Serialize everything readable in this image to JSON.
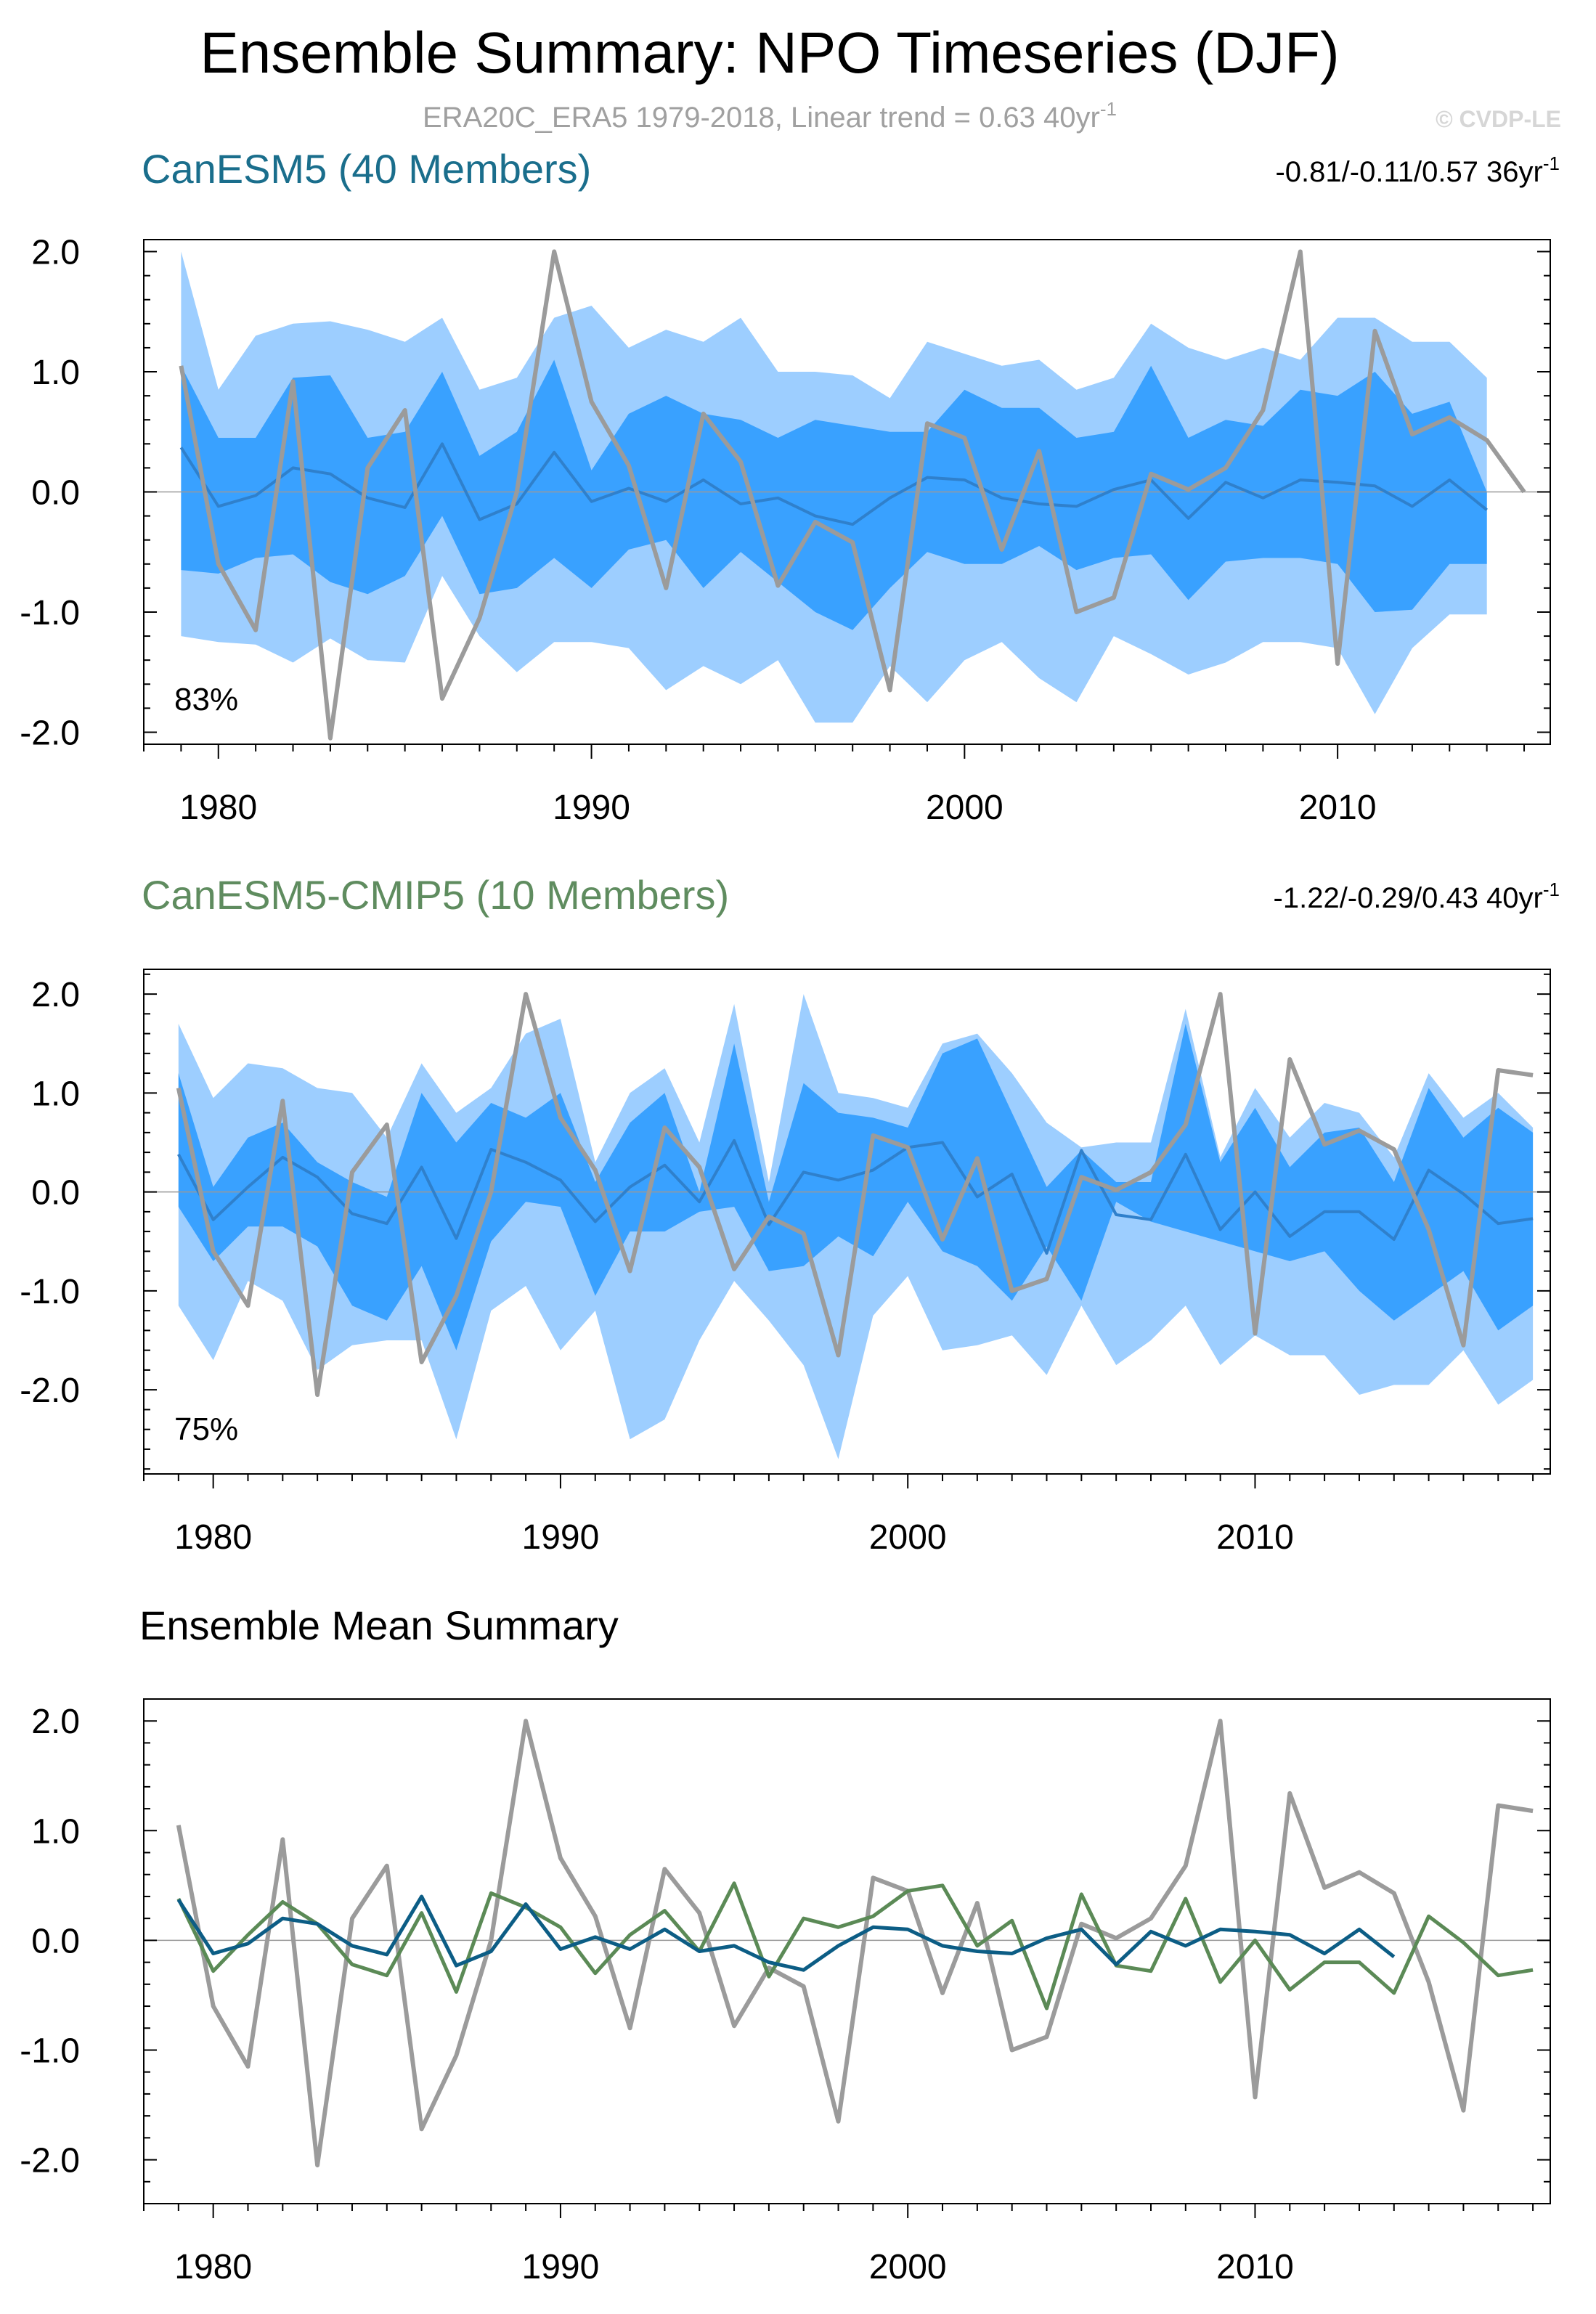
{
  "title": "Ensemble Summary: NPO Timeseries (DJF)",
  "subtitle_main": "ERA20C_ERA5 1979-2018, Linear trend = 0.63 40yr",
  "subtitle_sup": "-1",
  "credit": "© CVDP-LE",
  "colors": {
    "band_outer": "#9dceff",
    "band_inner": "#39a1ff",
    "ens_mean": "#2f80cc",
    "obs": "#9b9b9b",
    "canesm5_title": "#1a6e8c",
    "cmip5_title": "#5f8c5f",
    "mean_canesm5": "#0c5d85",
    "mean_cmip5": "#5b8a56",
    "zero_line": "#999999"
  },
  "chart_data": [
    {
      "type": "area",
      "name": "canesm5-panel",
      "title": "CanESM5 (40 Members)",
      "trend_text": "-0.81/-0.11/0.57 36yr",
      "trend_sup": "-1",
      "percent_label": "83%",
      "xlim": [
        1978,
        2015.7
      ],
      "ylim": [
        -2.1,
        2.1
      ],
      "xticks": [
        1980,
        1990,
        2000,
        2010
      ],
      "xtick_labels": [
        "1980",
        "1990",
        "2000",
        "2010"
      ],
      "yticks": [
        2.0,
        1.0,
        0.0,
        -1.0,
        -2.0
      ],
      "ytick_labels": [
        "2.0",
        "1.0",
        "0.0",
        "-1.0",
        "-2.0"
      ],
      "x": [
        1979,
        1980,
        1981,
        1982,
        1983,
        1984,
        1985,
        1986,
        1987,
        1988,
        1989,
        1990,
        1991,
        1992,
        1993,
        1994,
        1995,
        1996,
        1997,
        1998,
        1999,
        2000,
        2001,
        2002,
        2003,
        2004,
        2005,
        2006,
        2007,
        2008,
        2009,
        2010,
        2011,
        2012,
        2013,
        2014
      ],
      "max": [
        2.0,
        0.85,
        1.3,
        1.4,
        1.42,
        1.35,
        1.25,
        1.45,
        0.85,
        0.95,
        1.45,
        1.55,
        1.2,
        1.35,
        1.25,
        1.45,
        1.0,
        1.0,
        0.97,
        0.78,
        1.25,
        1.15,
        1.05,
        1.1,
        0.85,
        0.95,
        1.4,
        1.2,
        1.1,
        1.2,
        1.1,
        1.45,
        1.45,
        1.25,
        1.25,
        0.95
      ],
      "p90": [
        1.05,
        0.45,
        0.45,
        0.95,
        0.97,
        0.45,
        0.5,
        1.0,
        0.3,
        0.5,
        1.1,
        0.18,
        0.65,
        0.8,
        0.65,
        0.6,
        0.45,
        0.6,
        0.55,
        0.5,
        0.5,
        0.85,
        0.7,
        0.7,
        0.45,
        0.5,
        1.05,
        0.45,
        0.6,
        0.55,
        0.85,
        0.8,
        1.0,
        0.65,
        0.75,
        0.0
      ],
      "p10": [
        -0.65,
        -0.68,
        -0.55,
        -0.52,
        -0.75,
        -0.85,
        -0.7,
        -0.2,
        -0.85,
        -0.8,
        -0.55,
        -0.8,
        -0.48,
        -0.4,
        -0.8,
        -0.5,
        -0.75,
        -1.0,
        -1.15,
        -0.8,
        -0.5,
        -0.6,
        -0.6,
        -0.45,
        -0.65,
        -0.55,
        -0.52,
        -0.9,
        -0.58,
        -0.55,
        -0.55,
        -0.6,
        -1.0,
        -0.98,
        -0.6,
        -0.6
      ],
      "min": [
        -1.2,
        -1.25,
        -1.27,
        -1.42,
        -1.22,
        -1.4,
        -1.42,
        -0.7,
        -1.2,
        -1.5,
        -1.25,
        -1.25,
        -1.3,
        -1.65,
        -1.45,
        -1.6,
        -1.4,
        -1.92,
        -1.92,
        -1.45,
        -1.75,
        -1.4,
        -1.25,
        -1.55,
        -1.75,
        -1.2,
        -1.35,
        -1.52,
        -1.42,
        -1.25,
        -1.25,
        -1.3,
        -1.85,
        -1.3,
        -1.02,
        -1.02
      ],
      "ensemble_mean": [
        0.37,
        -0.12,
        -0.03,
        0.2,
        0.15,
        -0.05,
        -0.13,
        0.4,
        -0.23,
        -0.1,
        0.33,
        -0.08,
        0.03,
        -0.08,
        0.1,
        -0.1,
        -0.05,
        -0.2,
        -0.27,
        -0.05,
        0.12,
        0.1,
        -0.05,
        -0.1,
        -0.12,
        0.02,
        0.1,
        -0.22,
        0.08,
        -0.05,
        0.1,
        0.08,
        0.05,
        -0.12,
        0.1,
        -0.15
      ],
      "obs_x": [
        1979,
        1980,
        1981,
        1982,
        1983,
        1984,
        1985,
        1986,
        1987,
        1988,
        1989,
        1990,
        1991,
        1992,
        1993,
        1994,
        1995,
        1996,
        1997,
        1998,
        1999,
        2000,
        2001,
        2002,
        2003,
        2004,
        2005,
        2006,
        2007,
        2008,
        2009,
        2010,
        2011,
        2012,
        2013,
        2014,
        2015
      ],
      "obs": [
        1.05,
        -0.6,
        -1.15,
        0.92,
        -2.05,
        0.2,
        0.68,
        -1.72,
        -1.05,
        0.0,
        2.0,
        0.75,
        0.22,
        -0.8,
        0.65,
        0.25,
        -0.78,
        -0.25,
        -0.42,
        -1.65,
        0.57,
        0.45,
        -0.48,
        0.34,
        -1.0,
        -0.88,
        0.15,
        0.02,
        0.2,
        0.68,
        2.0,
        -1.43,
        1.34,
        0.48,
        0.62,
        0.43,
        0.0
      ]
    },
    {
      "type": "area",
      "name": "cmip5-panel",
      "title": "CanESM5-CMIP5 (10 Members)",
      "trend_text": "-1.22/-0.29/0.43 40yr",
      "trend_sup": "-1",
      "percent_label": "75%",
      "xlim": [
        1978,
        2018.5
      ],
      "ylim": [
        -2.85,
        2.25
      ],
      "xticks": [
        1980,
        1990,
        2000,
        2010
      ],
      "xtick_labels": [
        "1980",
        "1990",
        "2000",
        "2010"
      ],
      "yticks": [
        2.0,
        1.0,
        0.0,
        -1.0,
        -2.0
      ],
      "ytick_labels": [
        "2.0",
        "1.0",
        "0.0",
        "-1.0",
        "-2.0"
      ],
      "x": [
        1979,
        1980,
        1981,
        1982,
        1983,
        1984,
        1985,
        1986,
        1987,
        1988,
        1989,
        1990,
        1991,
        1992,
        1993,
        1994,
        1995,
        1996,
        1997,
        1998,
        1999,
        2000,
        2001,
        2002,
        2003,
        2004,
        2005,
        2006,
        2007,
        2008,
        2009,
        2010,
        2011,
        2012,
        2013,
        2014,
        2015,
        2016,
        2017,
        2018
      ],
      "max": [
        1.7,
        0.95,
        1.3,
        1.25,
        1.05,
        1.0,
        0.55,
        1.3,
        0.8,
        1.05,
        1.6,
        1.75,
        0.3,
        1.0,
        1.25,
        0.5,
        1.9,
        0.1,
        2.0,
        1.0,
        0.95,
        0.85,
        1.5,
        1.6,
        1.2,
        0.7,
        0.45,
        0.5,
        0.5,
        1.85,
        0.35,
        1.05,
        0.55,
        0.9,
        0.8,
        0.35,
        1.2,
        0.75,
        1.0,
        0.65
      ],
      "p90": [
        1.2,
        0.05,
        0.55,
        0.7,
        0.3,
        0.1,
        -0.05,
        1.0,
        0.5,
        0.9,
        0.75,
        1.0,
        0.1,
        0.7,
        1.0,
        0.0,
        1.5,
        -0.1,
        1.1,
        0.8,
        0.75,
        0.65,
        1.4,
        1.55,
        0.8,
        0.05,
        0.42,
        0.1,
        0.1,
        1.7,
        0.3,
        0.85,
        0.25,
        0.6,
        0.65,
        0.1,
        1.05,
        0.55,
        0.85,
        0.6
      ],
      "p10": [
        -0.15,
        -0.7,
        -0.35,
        -0.35,
        -0.55,
        -1.15,
        -1.3,
        -0.75,
        -1.6,
        -0.5,
        -0.1,
        -0.15,
        -1.05,
        -0.4,
        -0.4,
        -0.2,
        -0.15,
        -0.8,
        -0.75,
        -0.45,
        -0.65,
        -0.1,
        -0.6,
        -0.75,
        -1.1,
        -0.55,
        -1.1,
        -0.1,
        -0.3,
        -0.4,
        -0.5,
        -0.6,
        -0.7,
        -0.6,
        -1.0,
        -1.3,
        -1.05,
        -0.8,
        -1.4,
        -1.15
      ],
      "min": [
        -1.15,
        -1.7,
        -0.9,
        -1.1,
        -1.8,
        -1.55,
        -1.5,
        -1.5,
        -2.5,
        -1.2,
        -0.95,
        -1.6,
        -1.2,
        -2.5,
        -2.3,
        -1.5,
        -0.9,
        -1.3,
        -1.75,
        -2.7,
        -1.25,
        -0.85,
        -1.6,
        -1.55,
        -1.45,
        -1.85,
        -1.15,
        -1.75,
        -1.5,
        -1.15,
        -1.75,
        -1.45,
        -1.65,
        -1.65,
        -2.05,
        -1.95,
        -1.95,
        -1.6,
        -2.15,
        -1.9
      ],
      "ensemble_mean": [
        0.38,
        -0.28,
        0.05,
        0.35,
        0.15,
        -0.22,
        -0.32,
        0.25,
        -0.47,
        0.43,
        0.3,
        0.12,
        -0.3,
        0.05,
        0.27,
        -0.1,
        0.52,
        -0.33,
        0.2,
        0.12,
        0.22,
        0.45,
        0.5,
        -0.05,
        0.18,
        -0.62,
        0.42,
        -0.23,
        -0.28,
        0.38,
        -0.38,
        0.0,
        -0.45,
        -0.2,
        -0.2,
        -0.48,
        0.22,
        -0.02,
        -0.32,
        -0.27
      ],
      "obs_x": [
        1979,
        1980,
        1981,
        1982,
        1983,
        1984,
        1985,
        1986,
        1987,
        1988,
        1989,
        1990,
        1991,
        1992,
        1993,
        1994,
        1995,
        1996,
        1997,
        1998,
        1999,
        2000,
        2001,
        2002,
        2003,
        2004,
        2005,
        2006,
        2007,
        2008,
        2009,
        2010,
        2011,
        2012,
        2013,
        2014,
        2015,
        2016,
        2017,
        2018
      ],
      "obs": [
        1.05,
        -0.6,
        -1.15,
        0.92,
        -2.05,
        0.2,
        0.68,
        -1.72,
        -1.05,
        0.0,
        2.0,
        0.75,
        0.22,
        -0.8,
        0.65,
        0.25,
        -0.78,
        -0.25,
        -0.42,
        -1.65,
        0.57,
        0.45,
        -0.48,
        0.34,
        -1.0,
        -0.88,
        0.15,
        0.02,
        0.2,
        0.68,
        2.0,
        -1.43,
        1.34,
        0.48,
        0.62,
        0.43,
        -0.38,
        -1.55,
        1.23,
        1.18
      ]
    },
    {
      "type": "line",
      "name": "mean-panel",
      "title": "Ensemble Mean Summary",
      "xlim": [
        1978,
        2018.5
      ],
      "ylim": [
        -2.4,
        2.2
      ],
      "xticks": [
        1980,
        1990,
        2000,
        2010
      ],
      "xtick_labels": [
        "1980",
        "1990",
        "2000",
        "2010"
      ],
      "yticks": [
        2.0,
        1.0,
        0.0,
        -1.0,
        -2.0
      ],
      "ytick_labels": [
        "2.0",
        "1.0",
        "0.0",
        "-1.0",
        "-2.0"
      ],
      "series": [
        {
          "name": "ERA20C_ERA5",
          "color_key": "obs",
          "x": [
            1979,
            1980,
            1981,
            1982,
            1983,
            1984,
            1985,
            1986,
            1987,
            1988,
            1989,
            1990,
            1991,
            1992,
            1993,
            1994,
            1995,
            1996,
            1997,
            1998,
            1999,
            2000,
            2001,
            2002,
            2003,
            2004,
            2005,
            2006,
            2007,
            2008,
            2009,
            2010,
            2011,
            2012,
            2013,
            2014,
            2015,
            2016,
            2017,
            2018
          ],
          "values": [
            1.05,
            -0.6,
            -1.15,
            0.92,
            -2.05,
            0.2,
            0.68,
            -1.72,
            -1.05,
            0.0,
            2.0,
            0.75,
            0.22,
            -0.8,
            0.65,
            0.25,
            -0.78,
            -0.25,
            -0.42,
            -1.65,
            0.57,
            0.45,
            -0.48,
            0.34,
            -1.0,
            -0.88,
            0.15,
            0.02,
            0.2,
            0.68,
            2.0,
            -1.43,
            1.34,
            0.48,
            0.62,
            0.43,
            -0.38,
            -1.55,
            1.23,
            1.18
          ]
        },
        {
          "name": "CanESM5-CMIP5",
          "color_key": "mean_cmip5",
          "x": [
            1979,
            1980,
            1981,
            1982,
            1983,
            1984,
            1985,
            1986,
            1987,
            1988,
            1989,
            1990,
            1991,
            1992,
            1993,
            1994,
            1995,
            1996,
            1997,
            1998,
            1999,
            2000,
            2001,
            2002,
            2003,
            2004,
            2005,
            2006,
            2007,
            2008,
            2009,
            2010,
            2011,
            2012,
            2013,
            2014,
            2015,
            2016,
            2017,
            2018
          ],
          "values": [
            0.38,
            -0.28,
            0.05,
            0.35,
            0.15,
            -0.22,
            -0.32,
            0.25,
            -0.47,
            0.43,
            0.3,
            0.12,
            -0.3,
            0.05,
            0.27,
            -0.1,
            0.52,
            -0.33,
            0.2,
            0.12,
            0.22,
            0.45,
            0.5,
            -0.05,
            0.18,
            -0.62,
            0.42,
            -0.23,
            -0.28,
            0.38,
            -0.38,
            0.0,
            -0.45,
            -0.2,
            -0.2,
            -0.48,
            0.22,
            -0.02,
            -0.32,
            -0.27
          ]
        },
        {
          "name": "CanESM5",
          "color_key": "mean_canesm5",
          "x": [
            1979,
            1980,
            1981,
            1982,
            1983,
            1984,
            1985,
            1986,
            1987,
            1988,
            1989,
            1990,
            1991,
            1992,
            1993,
            1994,
            1995,
            1996,
            1997,
            1998,
            1999,
            2000,
            2001,
            2002,
            2003,
            2004,
            2005,
            2006,
            2007,
            2008,
            2009,
            2010,
            2011,
            2012,
            2013,
            2014
          ],
          "values": [
            0.37,
            -0.12,
            -0.03,
            0.2,
            0.15,
            -0.05,
            -0.13,
            0.4,
            -0.23,
            -0.1,
            0.33,
            -0.08,
            0.03,
            -0.08,
            0.1,
            -0.1,
            -0.05,
            -0.2,
            -0.27,
            -0.05,
            0.12,
            0.1,
            -0.05,
            -0.1,
            -0.12,
            0.02,
            0.1,
            -0.22,
            0.08,
            -0.05,
            0.1,
            0.08,
            0.05,
            -0.12,
            0.1,
            -0.15
          ]
        }
      ]
    }
  ]
}
